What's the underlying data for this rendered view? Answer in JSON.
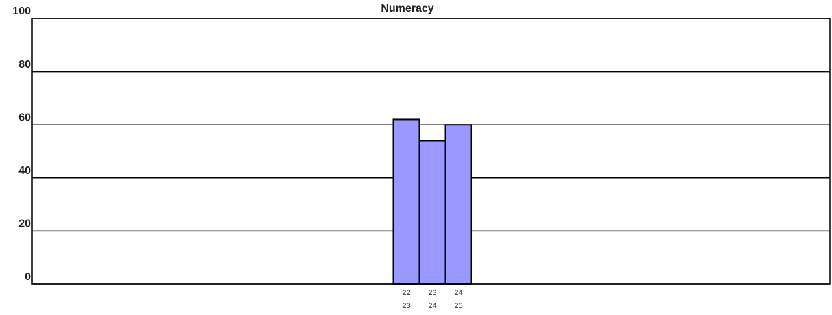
{
  "chart_data": {
    "type": "bar",
    "title": "Numeracy",
    "categories": [
      [
        "22",
        "23"
      ],
      [
        "23",
        "24"
      ],
      [
        "24",
        "25"
      ]
    ],
    "values": [
      62,
      54,
      60
    ],
    "color": "#9999ff",
    "ylim": [
      0,
      100
    ],
    "yticks": [
      0,
      20,
      40,
      60,
      80,
      100
    ],
    "grid": true
  }
}
